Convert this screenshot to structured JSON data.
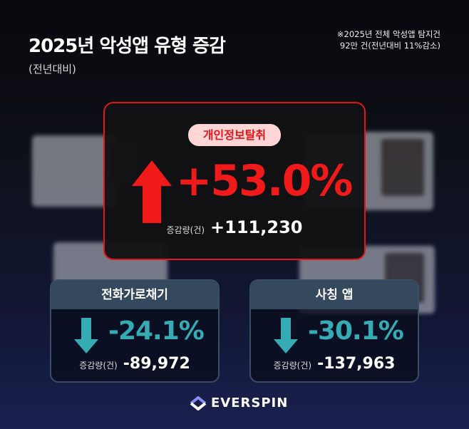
{
  "header": {
    "title": "2025년 악성앱 유형 증감",
    "subtitle": "(전년대비)",
    "note_line1": "※2025년 전체 악성앱 탐지건",
    "note_line2": "92만 건(전년대비 11%감소)"
  },
  "main": {
    "category": "개인정보탈취",
    "direction": "up",
    "percent": "+53.0%",
    "amount_label": "증감량(건)",
    "amount": "+111,230",
    "color": "#f01a1a"
  },
  "cards": [
    {
      "category": "전화가로채기",
      "direction": "down",
      "percent": "-24.1%",
      "amount_label": "증감량(건)",
      "amount": "-89,972"
    },
    {
      "category": "사칭 앱",
      "direction": "down",
      "percent": "-30.1%",
      "amount_label": "증감량(건)",
      "amount": "-137,963"
    }
  ],
  "colors": {
    "down": "#35acb3",
    "up": "#f01a1a"
  },
  "logo": {
    "text": "EVERSPIN"
  }
}
